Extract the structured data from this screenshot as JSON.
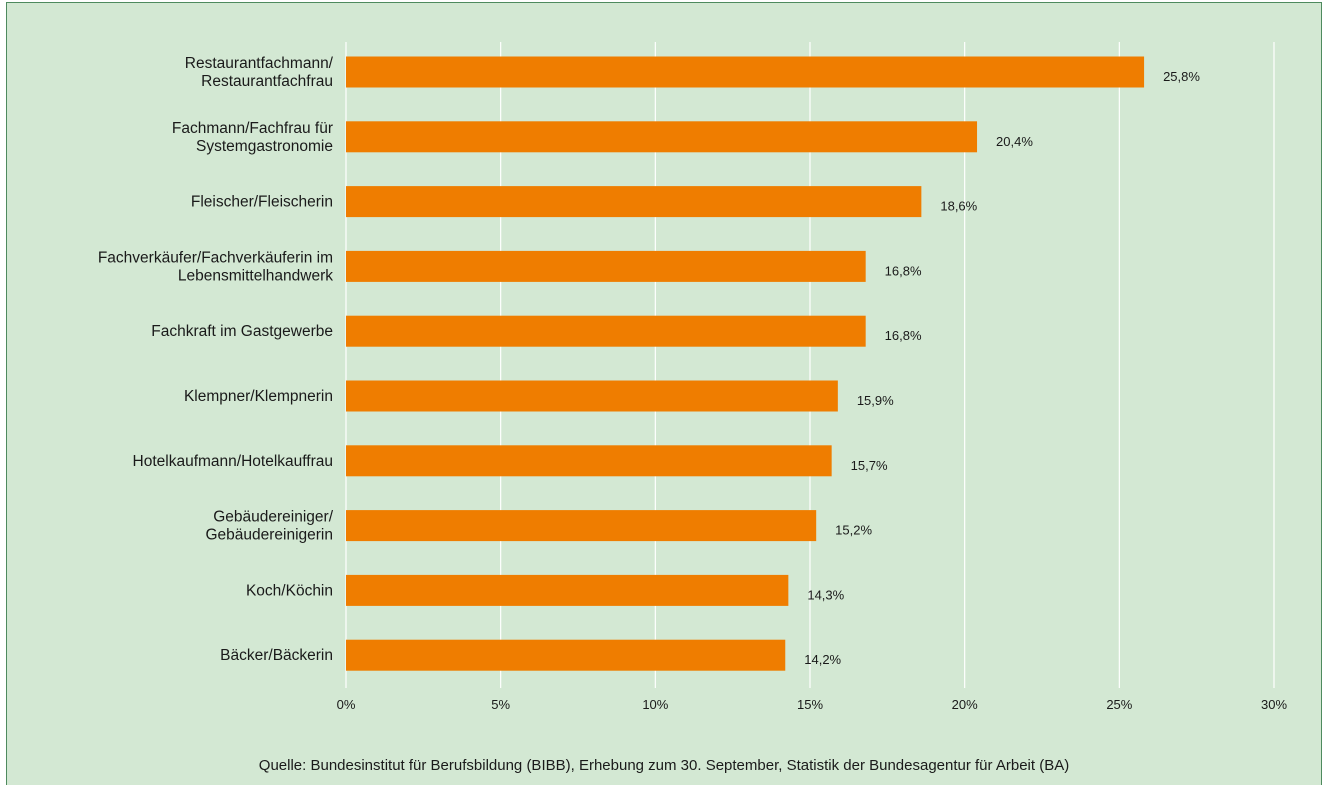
{
  "chart_data": {
    "type": "bar",
    "orientation": "horizontal",
    "categories": [
      [
        "Restaurantfachmann/",
        "Restaurantfachfrau"
      ],
      [
        "Fachmann/Fachfrau für",
        "Systemgastronomie"
      ],
      [
        "Fleischer/Fleischerin"
      ],
      [
        "Fachverkäufer/Fachverkäuferin im",
        "Lebensmittelhandwerk"
      ],
      [
        "Fachkraft im Gastgewerbe"
      ],
      [
        "Klempner/Klempnerin"
      ],
      [
        "Hotelkaufmann/Hotelkauffrau"
      ],
      [
        "Gebäudereiniger/",
        "Gebäudereinigerin"
      ],
      [
        "Koch/Köchin"
      ],
      [
        "Bäcker/Bäckerin"
      ]
    ],
    "values": [
      25.8,
      20.4,
      18.6,
      16.8,
      16.8,
      15.9,
      15.7,
      15.2,
      14.3,
      14.2
    ],
    "data_labels": [
      "25,8%",
      "20,4%",
      "18,6%",
      "16,8%",
      "16,8%",
      "15,9%",
      "15,7%",
      "15,2%",
      "14,3%",
      "14,2%"
    ],
    "x_ticks": [
      0,
      5,
      10,
      15,
      20,
      25,
      30
    ],
    "x_tick_labels": [
      "0%",
      "5%",
      "10%",
      "15%",
      "20%",
      "25%",
      "30%"
    ],
    "xlim": [
      0,
      30
    ],
    "grid": "vertical",
    "legend": "none",
    "colors": {
      "bar": "#ef7d00",
      "background": "#d3e8d3",
      "grid": "#ffffff",
      "frame": "#4e8a5e"
    }
  },
  "source_note": "Quelle: Bundesinstitut für Berufsbildung (BIBB), Erhebung zum 30. September, Statistik der Bundesagentur für Arbeit (BA)"
}
